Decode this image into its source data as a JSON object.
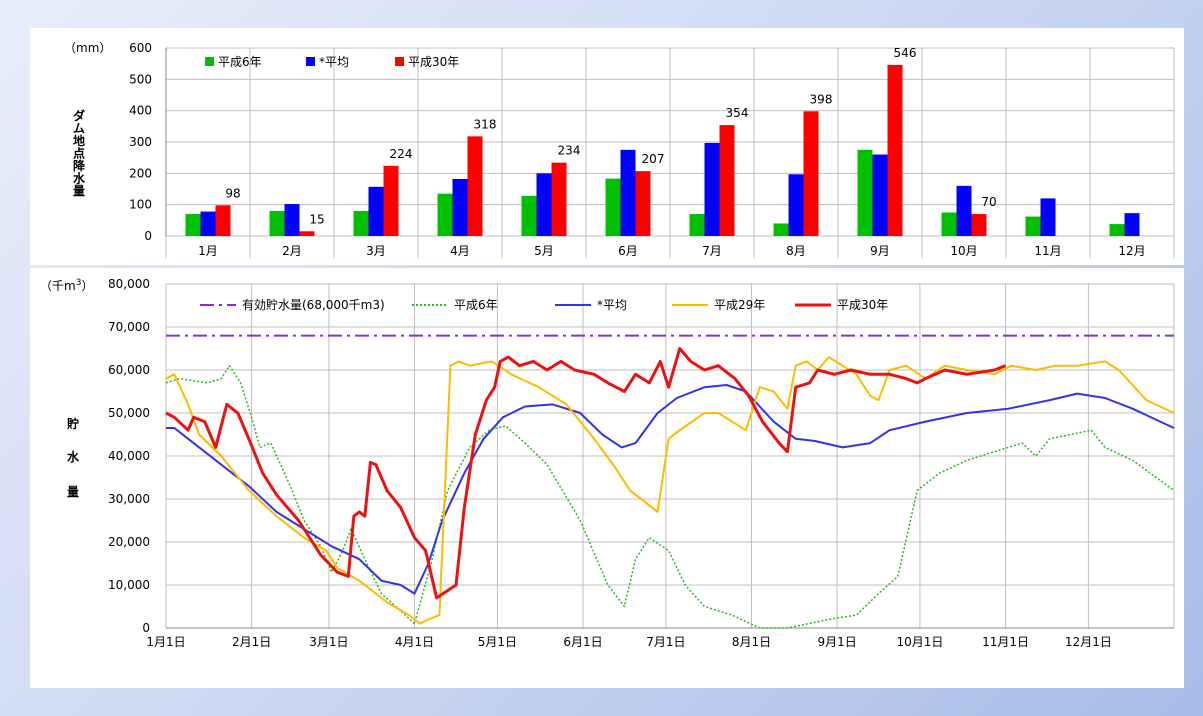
{
  "chart_data": [
    {
      "type": "bar",
      "unit_label": "（mm）",
      "ylabel": "ダム地点降水量",
      "ylim": [
        0,
        600
      ],
      "yticks": [
        0,
        100,
        200,
        300,
        400,
        500,
        600
      ],
      "categories": [
        "1月",
        "2月",
        "3月",
        "4月",
        "5月",
        "6月",
        "7月",
        "8月",
        "9月",
        "10月",
        "11月",
        "12月"
      ],
      "series": [
        {
          "name": "平成6年",
          "color": "#00c000",
          "values": [
            70,
            80,
            80,
            135,
            128,
            183,
            70,
            40,
            275,
            75,
            62,
            38
          ]
        },
        {
          "name": "*平均",
          "color": "#0000ff",
          "values": [
            78,
            102,
            157,
            182,
            200,
            275,
            297,
            197,
            260,
            160,
            120,
            73
          ]
        },
        {
          "name": "平成30年",
          "color": "#ff0000",
          "values": [
            98,
            15,
            224,
            318,
            234,
            207,
            354,
            398,
            546,
            70,
            null,
            null
          ]
        }
      ],
      "data_labels": [
        "98",
        "15",
        "224",
        "318",
        "234",
        "207",
        "354",
        "398",
        "546",
        "70",
        "",
        ""
      ],
      "grid": true,
      "legend_position": "top-left"
    },
    {
      "type": "line",
      "unit_label": "（千m",
      "unit_sup": "3",
      "unit_close": "）",
      "ylabel": [
        "貯",
        "水",
        "量"
      ],
      "ylim": [
        0,
        80000
      ],
      "yticks": [
        "0",
        "10,000",
        "20,000",
        "30,000",
        "40,000",
        "50,000",
        "60,000",
        "70,000",
        "80,000"
      ],
      "xticks": [
        "1月1日",
        "2月1日",
        "3月1日",
        "4月1日",
        "5月1日",
        "6月1日",
        "7月1日",
        "8月1日",
        "9月1日",
        "10月1日",
        "11月1日",
        "12月1日"
      ],
      "grid": true,
      "legend_position": "top",
      "series": [
        {
          "name": "有効貯水量(68,000千m3)",
          "color": "#8a2be2",
          "style": "dashdot",
          "points": [
            [
              0,
              68000
            ],
            [
              365,
              68000
            ]
          ]
        },
        {
          "name": "平成6年",
          "color": "#22bb22",
          "style": "dotted",
          "points": [
            [
              0,
              57000
            ],
            [
              5,
              58000
            ],
            [
              15,
              57000
            ],
            [
              20,
              58000
            ],
            [
              23,
              61000
            ],
            [
              27,
              57000
            ],
            [
              31,
              49000
            ],
            [
              34,
              42000
            ],
            [
              38,
              43000
            ],
            [
              45,
              33000
            ],
            [
              50,
              25000
            ],
            [
              56,
              19000
            ],
            [
              60,
              13000
            ],
            [
              64,
              18000
            ],
            [
              67,
              23000
            ],
            [
              72,
              16000
            ],
            [
              78,
              8000
            ],
            [
              85,
              4000
            ],
            [
              90,
              1000
            ],
            [
              96,
              15000
            ],
            [
              102,
              32000
            ],
            [
              110,
              42000
            ],
            [
              117,
              46000
            ],
            [
              123,
              47000
            ],
            [
              130,
              43000
            ],
            [
              138,
              38000
            ],
            [
              150,
              25000
            ],
            [
              160,
              10000
            ],
            [
              166,
              5000
            ],
            [
              170,
              16000
            ],
            [
              175,
              21000
            ],
            [
              182,
              18000
            ],
            [
              188,
              10000
            ],
            [
              195,
              5000
            ],
            [
              205,
              3000
            ],
            [
              215,
              0
            ],
            [
              225,
              0
            ],
            [
              240,
              2000
            ],
            [
              250,
              3000
            ],
            [
              258,
              8000
            ],
            [
              265,
              12000
            ],
            [
              272,
              32000
            ],
            [
              280,
              36000
            ],
            [
              290,
              39000
            ],
            [
              300,
              41000
            ],
            [
              310,
              43000
            ],
            [
              315,
              40000
            ],
            [
              320,
              44000
            ],
            [
              335,
              46000
            ],
            [
              340,
              42000
            ],
            [
              350,
              39000
            ],
            [
              365,
              32000
            ]
          ]
        },
        {
          "name": "*平均",
          "color": "#3333ee",
          "style": "solid",
          "points": [
            [
              0,
              46500
            ],
            [
              3,
              46500
            ],
            [
              10,
              43000
            ],
            [
              20,
              38000
            ],
            [
              30,
              33000
            ],
            [
              40,
              27000
            ],
            [
              50,
              23000
            ],
            [
              60,
              19000
            ],
            [
              70,
              16000
            ],
            [
              78,
              11000
            ],
            [
              85,
              10000
            ],
            [
              90,
              8000
            ],
            [
              95,
              15000
            ],
            [
              100,
              25000
            ],
            [
              108,
              36000
            ],
            [
              115,
              44000
            ],
            [
              122,
              49000
            ],
            [
              130,
              51500
            ],
            [
              140,
              52000
            ],
            [
              150,
              50000
            ],
            [
              158,
              45000
            ],
            [
              165,
              42000
            ],
            [
              170,
              43000
            ],
            [
              178,
              50000
            ],
            [
              185,
              53500
            ],
            [
              195,
              56000
            ],
            [
              203,
              56500
            ],
            [
              210,
              55000
            ],
            [
              220,
              48000
            ],
            [
              228,
              44000
            ],
            [
              235,
              43500
            ],
            [
              245,
              42000
            ],
            [
              255,
              43000
            ],
            [
              262,
              46000
            ],
            [
              275,
              48000
            ],
            [
              290,
              50000
            ],
            [
              305,
              51000
            ],
            [
              320,
              53000
            ],
            [
              330,
              54500
            ],
            [
              340,
              53500
            ],
            [
              350,
              51000
            ],
            [
              360,
              48000
            ],
            [
              365,
              46500
            ]
          ]
        },
        {
          "name": "平成29年",
          "color": "#ffbb00",
          "style": "solid",
          "points": [
            [
              0,
              58000
            ],
            [
              3,
              59000
            ],
            [
              8,
              52000
            ],
            [
              12,
              45000
            ],
            [
              20,
              40000
            ],
            [
              30,
              32000
            ],
            [
              40,
              26000
            ],
            [
              50,
              21000
            ],
            [
              58,
              18000
            ],
            [
              62,
              14000
            ],
            [
              70,
              11000
            ],
            [
              80,
              6000
            ],
            [
              88,
              3000
            ],
            [
              92,
              1000
            ],
            [
              95,
              2000
            ],
            [
              99,
              3000
            ],
            [
              103,
              61000
            ],
            [
              106,
              62000
            ],
            [
              110,
              61000
            ],
            [
              118,
              62000
            ],
            [
              125,
              59000
            ],
            [
              135,
              56000
            ],
            [
              145,
              52000
            ],
            [
              155,
              44000
            ],
            [
              163,
              37000
            ],
            [
              168,
              32000
            ],
            [
              178,
              27000
            ],
            [
              182,
              44000
            ],
            [
              186,
              46000
            ],
            [
              195,
              50000
            ],
            [
              200,
              50000
            ],
            [
              210,
              46000
            ],
            [
              215,
              56000
            ],
            [
              220,
              55000
            ],
            [
              225,
              51000
            ],
            [
              228,
              61000
            ],
            [
              232,
              62000
            ],
            [
              236,
              60000
            ],
            [
              240,
              63000
            ],
            [
              245,
              61000
            ],
            [
              250,
              59000
            ],
            [
              255,
              54000
            ],
            [
              258,
              53000
            ],
            [
              262,
              60000
            ],
            [
              268,
              61000
            ],
            [
              275,
              58000
            ],
            [
              282,
              61000
            ],
            [
              290,
              60000
            ],
            [
              300,
              59000
            ],
            [
              306,
              61000
            ],
            [
              315,
              60000
            ],
            [
              322,
              61000
            ],
            [
              330,
              61000
            ],
            [
              340,
              62000
            ],
            [
              345,
              60000
            ],
            [
              355,
              53000
            ],
            [
              365,
              50000
            ]
          ]
        },
        {
          "name": "平成30年",
          "color": "#ee1111",
          "style": "solid",
          "points": [
            [
              0,
              50000
            ],
            [
              3,
              49000
            ],
            [
              8,
              46000
            ],
            [
              10,
              49000
            ],
            [
              14,
              48000
            ],
            [
              18,
              42000
            ],
            [
              22,
              52000
            ],
            [
              26,
              50000
            ],
            [
              30,
              44000
            ],
            [
              35,
              36000
            ],
            [
              40,
              31000
            ],
            [
              48,
              25000
            ],
            [
              56,
              17000
            ],
            [
              62,
              13000
            ],
            [
              66,
              12000
            ],
            [
              68,
              26000
            ],
            [
              70,
              27000
            ],
            [
              72,
              26000
            ],
            [
              74,
              38500
            ],
            [
              76,
              38000
            ],
            [
              80,
              32000
            ],
            [
              85,
              28000
            ],
            [
              90,
              21000
            ],
            [
              94,
              18000
            ],
            [
              98,
              7000
            ],
            [
              105,
              10000
            ],
            [
              108,
              28000
            ],
            [
              112,
              45000
            ],
            [
              116,
              53000
            ],
            [
              119,
              56000
            ],
            [
              121,
              62000
            ],
            [
              124,
              63000
            ],
            [
              128,
              61000
            ],
            [
              133,
              62000
            ],
            [
              138,
              60000
            ],
            [
              143,
              62000
            ],
            [
              148,
              60000
            ],
            [
              155,
              59000
            ],
            [
              160,
              57000
            ],
            [
              166,
              55000
            ],
            [
              170,
              59000
            ],
            [
              175,
              57000
            ],
            [
              179,
              62000
            ],
            [
              182,
              56000
            ],
            [
              186,
              65000
            ],
            [
              190,
              62000
            ],
            [
              195,
              60000
            ],
            [
              200,
              61000
            ],
            [
              206,
              58000
            ],
            [
              211,
              54000
            ],
            [
              216,
              48000
            ],
            [
              222,
              43000
            ],
            [
              225,
              41000
            ],
            [
              228,
              56000
            ],
            [
              233,
              57000
            ],
            [
              236,
              60000
            ],
            [
              242,
              59000
            ],
            [
              248,
              60000
            ],
            [
              255,
              59000
            ],
            [
              262,
              59000
            ],
            [
              268,
              58000
            ],
            [
              272,
              57000
            ],
            [
              275,
              58000
            ],
            [
              282,
              60000
            ],
            [
              290,
              59000
            ],
            [
              300,
              60000
            ],
            [
              304,
              61000
            ]
          ]
        }
      ]
    }
  ]
}
